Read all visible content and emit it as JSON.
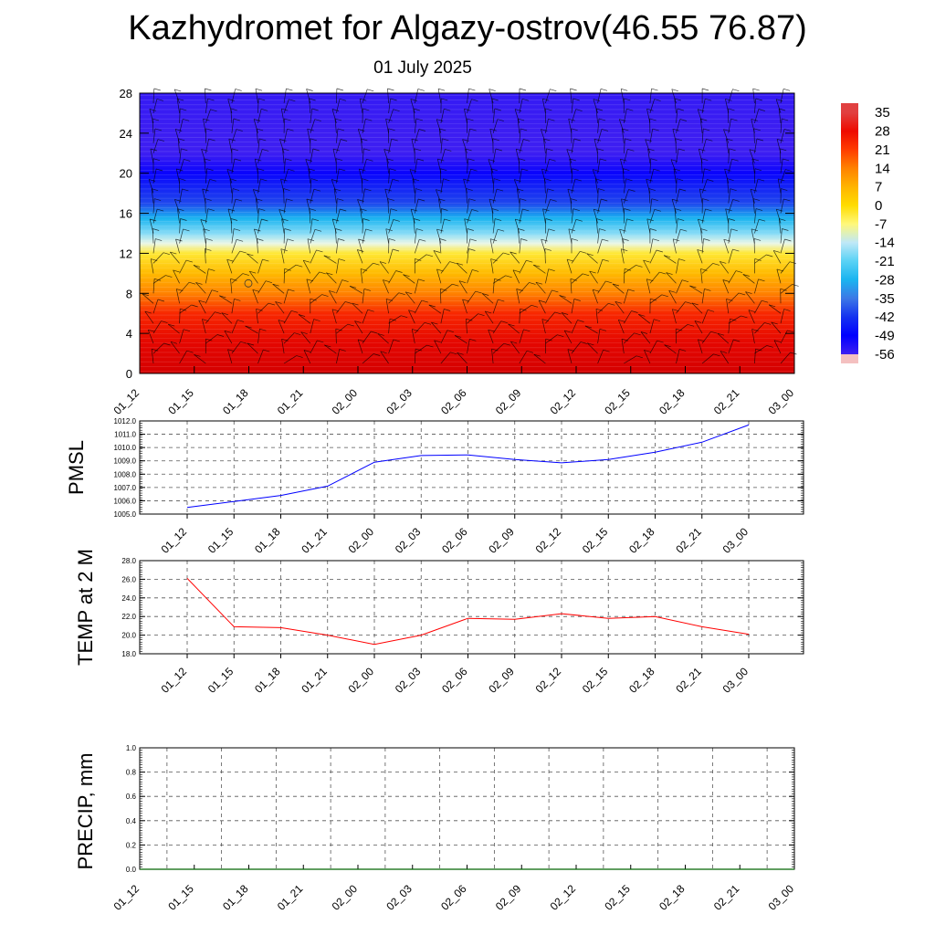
{
  "header": {
    "title": "Kazhydromet for Algazy-ostrov(46.55 76.87)",
    "date": "01 July 2025"
  },
  "colors": {
    "pmsl_line": "#0000ff",
    "temp_line": "#ff0000",
    "precip_line": "#006400",
    "grid": "#555555"
  },
  "chart_data": [
    {
      "type": "heatmap",
      "title": "",
      "ylim": [
        0,
        28
      ],
      "y_ticks": [
        "0",
        "4",
        "8",
        "12",
        "16",
        "20",
        "24",
        "28"
      ],
      "x_ticks": [
        "01_12",
        "01_15",
        "01_18",
        "01_21",
        "02_00",
        "02_03",
        "02_06",
        "02_09",
        "02_12",
        "02_15",
        "02_18",
        "02_21",
        "03_00"
      ],
      "colorbar": {
        "labels": [
          "35",
          "28",
          "21",
          "14",
          "7",
          "0",
          "-7",
          "-14",
          "-21",
          "-28",
          "-35",
          "-42",
          "-49",
          "-56"
        ],
        "range": [
          -60,
          38
        ]
      },
      "temperature_profile": [
        {
          "level": 0,
          "value": 33
        },
        {
          "level": 3,
          "value": 30
        },
        {
          "level": 6,
          "value": 24
        },
        {
          "level": 8,
          "value": 14
        },
        {
          "level": 10,
          "value": 6
        },
        {
          "level": 12,
          "value": -3
        },
        {
          "level": 13,
          "value": -12
        },
        {
          "level": 14,
          "value": -18
        },
        {
          "level": 15.5,
          "value": -28
        },
        {
          "level": 17,
          "value": -40
        },
        {
          "level": 20,
          "value": -50
        },
        {
          "level": 22,
          "value": -56
        },
        {
          "level": 24,
          "value": -56
        },
        {
          "level": 28,
          "value": -55
        }
      ],
      "overlay": "wind barbs"
    },
    {
      "type": "line",
      "ylabel": "PMSL",
      "ylim": [
        1005.0,
        1012.0
      ],
      "y_ticks": [
        "1005.0",
        "1006.0",
        "1007.0",
        "1008.0",
        "1009.0",
        "1010.0",
        "1011.0",
        "1012.0"
      ],
      "categories": [
        "01_12",
        "01_15",
        "01_18",
        "01_21",
        "02_00",
        "02_03",
        "02_06",
        "02_09",
        "02_12",
        "02_15",
        "02_18",
        "02_21",
        "03_00"
      ],
      "values": [
        1005.5,
        1005.95,
        1006.4,
        1007.1,
        1008.9,
        1009.4,
        1009.45,
        1009.1,
        1008.85,
        1009.1,
        1009.65,
        1010.4,
        1011.7
      ]
    },
    {
      "type": "line",
      "ylabel": "TEMP at 2 M",
      "ylim": [
        18.0,
        28.0
      ],
      "y_ticks": [
        "18.0",
        "20.0",
        "22.0",
        "24.0",
        "26.0",
        "28.0"
      ],
      "categories": [
        "01_12",
        "01_15",
        "01_18",
        "01_21",
        "02_00",
        "02_03",
        "02_06",
        "02_09",
        "02_12",
        "02_15",
        "02_18",
        "02_21",
        "03_00"
      ],
      "values": [
        26.1,
        20.9,
        20.8,
        20.0,
        19.0,
        20.0,
        21.8,
        21.7,
        22.3,
        21.8,
        22.0,
        20.9,
        20.1
      ]
    },
    {
      "type": "line",
      "ylabel": "PRECIP, mm",
      "ylim": [
        0.0,
        1.0
      ],
      "y_ticks": [
        "0.0",
        "0.2",
        "0.4",
        "0.6",
        "0.8",
        "1.0"
      ],
      "x_ticks": [
        "01_12",
        "01_15",
        "01_18",
        "01_21",
        "02_00",
        "02_03",
        "02_06",
        "02_09",
        "02_12",
        "02_15",
        "02_18",
        "02_21",
        "03_00"
      ],
      "values": [
        0,
        0,
        0,
        0,
        0,
        0,
        0,
        0,
        0,
        0,
        0,
        0,
        0
      ]
    }
  ]
}
